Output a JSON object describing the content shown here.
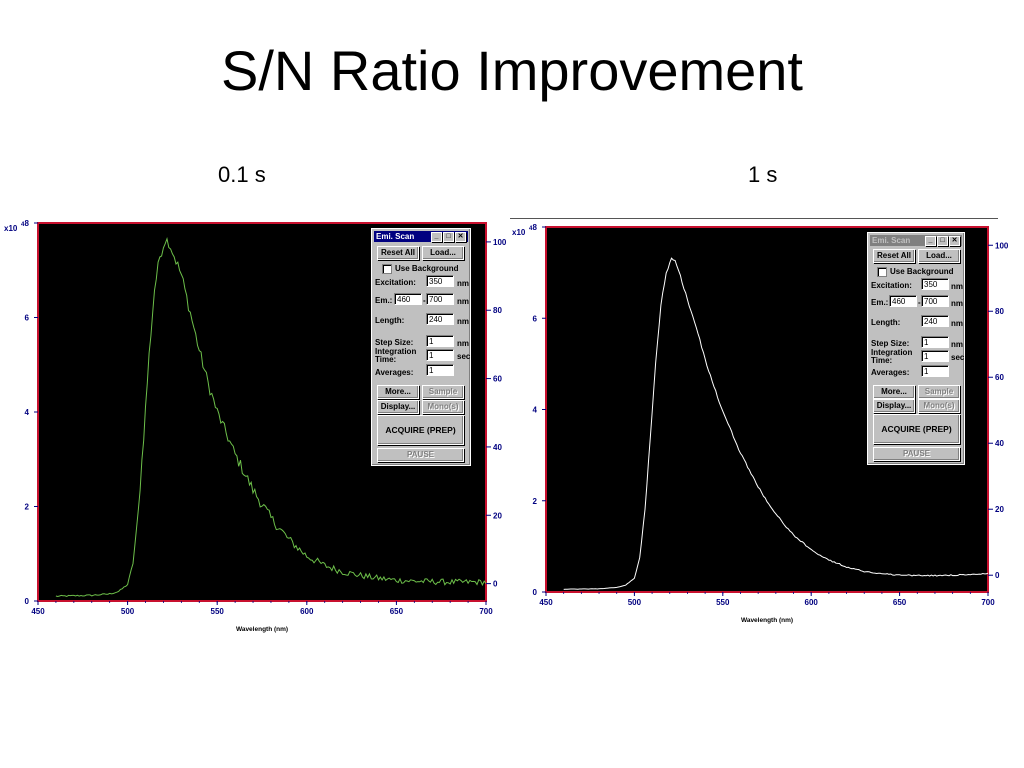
{
  "slide": {
    "title": "S/N Ratio Improvement",
    "left_label": "0.1 s",
    "right_label": "1 s"
  },
  "colors": {
    "plot_bg": "#000000",
    "frame": "#c8102e",
    "left_axis": "#000080",
    "right_axis": "#000080",
    "left_trace": "#6dbf4a",
    "right_trace": "#ffffff"
  },
  "dialog": {
    "title": "Emi. Scan",
    "min_icon": "minimize-icon",
    "max_icon": "maximize-icon",
    "close_icon": "close-icon",
    "reset_all": "Reset All",
    "load": "Load...",
    "use_background": "Use Background",
    "excitation_label": "Excitation:",
    "excitation_value": "350",
    "nm": "nm",
    "em_label": "Em.:",
    "em_start": "460",
    "em_dash": "-",
    "em_end": "700",
    "length_label": "Length:",
    "length_value": "240",
    "step_label": "Step Size:",
    "step_value": "1",
    "integration_label_1": "Integration",
    "integration_label_2": "Time:",
    "integration_value": "1",
    "sec": "sec",
    "averages_label": "Averages:",
    "averages_value": "1",
    "more": "More...",
    "sample": "Sample",
    "display": "Display...",
    "mono": "Mono(s)",
    "acquire": "ACQUIRE (PREP)",
    "pause": "PAUSE"
  },
  "chart_data": [
    {
      "type": "line",
      "title": "0.1 s",
      "xlabel": "Wavelength (nm)",
      "ylabel": "",
      "y_multiplier_label": "x10",
      "y_multiplier_exp": "4",
      "xlim": [
        450,
        700
      ],
      "ylim": [
        0,
        8
      ],
      "x_ticks": [
        "450",
        "500",
        "550",
        "600",
        "650",
        "700"
      ],
      "y_ticks": [
        "0",
        "2",
        "4",
        "6",
        "8"
      ],
      "right_ticks": [
        "0",
        "20",
        "40",
        "60",
        "80",
        "100"
      ],
      "grid": false,
      "noise": 0.12,
      "series": [
        {
          "x": [
            460,
            480,
            490,
            495,
            500,
            503,
            506,
            509,
            512,
            515,
            518,
            521,
            523,
            525,
            527,
            530,
            535,
            540,
            545,
            550,
            560,
            570,
            580,
            590,
            600,
            610,
            620,
            630,
            640,
            650,
            660,
            670,
            680,
            690,
            700
          ],
          "y": [
            0.1,
            0.12,
            0.15,
            0.2,
            0.35,
            0.8,
            1.9,
            3.5,
            5.2,
            6.6,
            7.3,
            7.65,
            7.6,
            7.4,
            7.2,
            6.9,
            6.1,
            5.3,
            4.6,
            4.0,
            3.1,
            2.35,
            1.75,
            1.3,
            0.95,
            0.75,
            0.62,
            0.54,
            0.48,
            0.44,
            0.42,
            0.41,
            0.4,
            0.4,
            0.4
          ]
        }
      ]
    },
    {
      "type": "line",
      "title": "1 s",
      "xlabel": "Wavelength (nm)",
      "ylabel": "",
      "y_multiplier_label": "x10",
      "y_multiplier_exp": "4",
      "xlim": [
        450,
        700
      ],
      "ylim": [
        0,
        8
      ],
      "x_ticks": [
        "450",
        "500",
        "550",
        "600",
        "650",
        "700"
      ],
      "y_ticks": [
        "0",
        "2",
        "4",
        "6",
        "8"
      ],
      "right_ticks": [
        "0",
        "20",
        "40",
        "60",
        "80",
        "100"
      ],
      "grid": false,
      "noise": 0.025,
      "series": [
        {
          "x": [
            460,
            480,
            490,
            495,
            500,
            503,
            506,
            509,
            512,
            515,
            518,
            521,
            523,
            525,
            527,
            530,
            535,
            540,
            545,
            550,
            560,
            570,
            580,
            590,
            600,
            610,
            620,
            630,
            640,
            650,
            660,
            670,
            680,
            690,
            700
          ],
          "y": [
            0.06,
            0.07,
            0.1,
            0.15,
            0.3,
            0.75,
            1.8,
            3.4,
            5.0,
            6.3,
            7.0,
            7.3,
            7.25,
            7.05,
            6.8,
            6.4,
            5.8,
            5.1,
            4.5,
            3.95,
            3.05,
            2.3,
            1.7,
            1.25,
            0.92,
            0.7,
            0.55,
            0.45,
            0.4,
            0.37,
            0.36,
            0.36,
            0.37,
            0.38,
            0.4
          ]
        }
      ]
    }
  ]
}
